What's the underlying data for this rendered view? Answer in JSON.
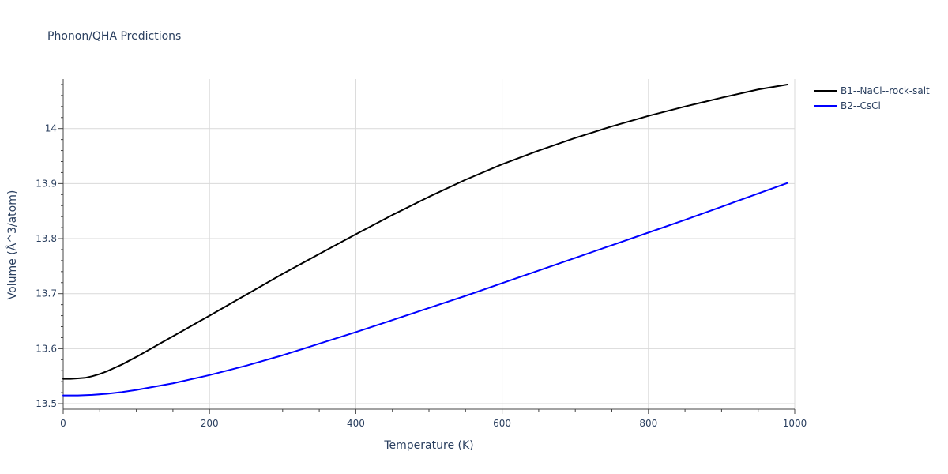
{
  "chart_data": {
    "type": "line",
    "title": "Phonon/QHA Predictions",
    "xlabel": "Temperature (K)",
    "ylabel": "Volume (Å^3/atom)",
    "xlim": [
      0,
      1000
    ],
    "ylim": [
      13.49,
      14.09
    ],
    "x_ticks": [
      0,
      200,
      400,
      600,
      800,
      1000
    ],
    "y_ticks": [
      13.5,
      13.6,
      13.7,
      13.8,
      13.9,
      14.0
    ],
    "x_tick_labels": [
      "0",
      "200",
      "400",
      "600",
      "800",
      "1000"
    ],
    "y_tick_labels": [
      "13.5",
      "13.6",
      "13.7",
      "13.8",
      "13.9",
      "14"
    ],
    "grid": true,
    "legend_position": "top-right",
    "series": [
      {
        "name": "B1--NaCl--rock-salt",
        "color": "#000000",
        "x": [
          0,
          10,
          20,
          30,
          40,
          50,
          60,
          70,
          80,
          100,
          120,
          140,
          160,
          180,
          200,
          250,
          300,
          350,
          400,
          450,
          500,
          550,
          600,
          650,
          700,
          750,
          800,
          850,
          900,
          950,
          990
        ],
        "y": [
          13.545,
          13.545,
          13.546,
          13.547,
          13.55,
          13.554,
          13.559,
          13.565,
          13.571,
          13.585,
          13.6,
          13.615,
          13.63,
          13.645,
          13.66,
          13.698,
          13.736,
          13.772,
          13.808,
          13.843,
          13.876,
          13.907,
          13.935,
          13.96,
          13.983,
          14.004,
          14.023,
          14.04,
          14.056,
          14.071,
          14.08
        ]
      },
      {
        "name": "B2--CsCl",
        "color": "#0000ff",
        "x": [
          0,
          20,
          40,
          60,
          80,
          100,
          150,
          200,
          250,
          300,
          350,
          400,
          450,
          500,
          550,
          600,
          650,
          700,
          750,
          800,
          850,
          900,
          950,
          990
        ],
        "y": [
          13.515,
          13.515,
          13.516,
          13.518,
          13.521,
          13.525,
          13.537,
          13.552,
          13.569,
          13.588,
          13.609,
          13.63,
          13.652,
          13.674,
          13.696,
          13.719,
          13.742,
          13.765,
          13.788,
          13.811,
          13.834,
          13.858,
          13.882,
          13.901
        ]
      }
    ]
  }
}
